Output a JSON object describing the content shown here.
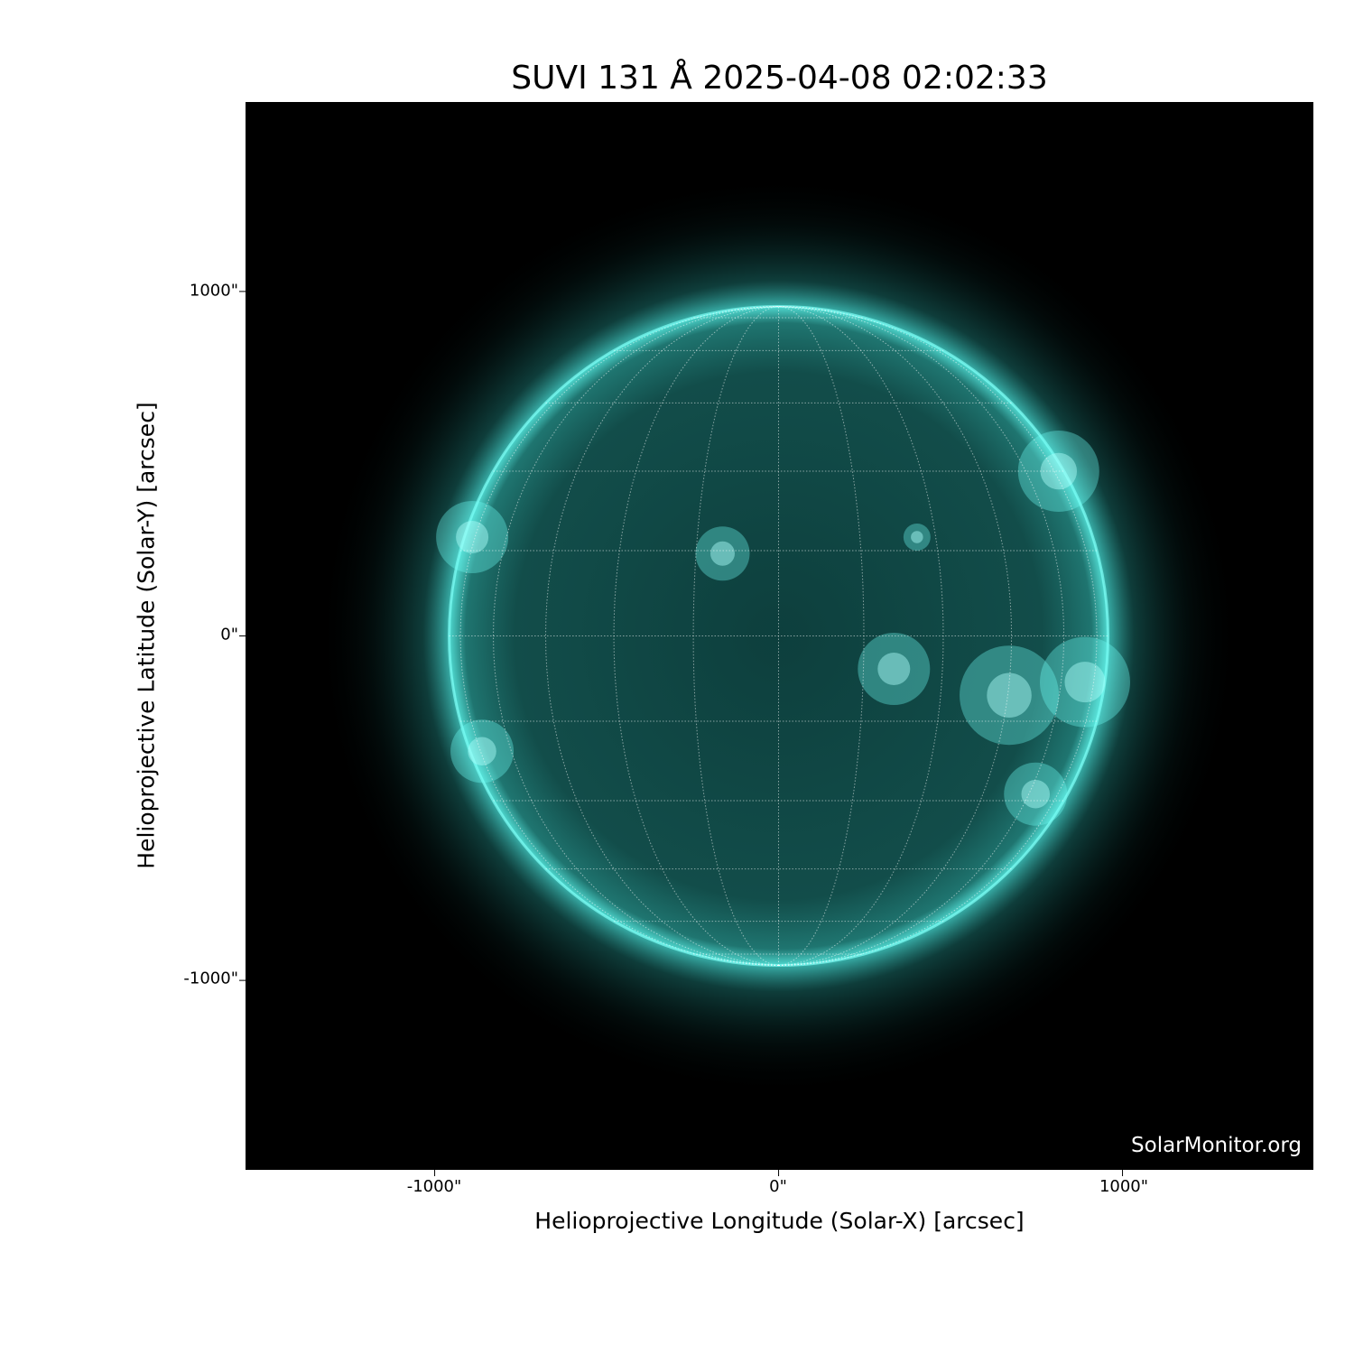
{
  "chart_data": {
    "type": "heatmap",
    "title": "SUVI 131 Å 2025-04-08 02:02:33",
    "xlabel": "Helioprojective Longitude (Solar-X) [arcsec]",
    "ylabel": "Helioprojective Latitude (Solar-Y) [arcsec]",
    "xlim": [
      -1550,
      1555
    ],
    "ylim": [
      -1550,
      1550
    ],
    "x_ticks": [
      "-1000\"",
      "0\"",
      "1000\""
    ],
    "y_ticks": [
      "1000\"",
      "0\"",
      "-1000\""
    ],
    "x_tick_values": [
      -1000,
      0,
      1000
    ],
    "y_tick_values": [
      1000,
      0,
      -1000
    ],
    "solar_radius_arcsec": 958,
    "grid_spacing_deg": 15,
    "colormap": "teal (SUVI 131)",
    "colors": {
      "background": "#000000",
      "disk": "#0f4a48",
      "limb": "#5ff5ec",
      "grid": "#ffffff"
    }
  },
  "watermark": "SolarMonitor.org"
}
